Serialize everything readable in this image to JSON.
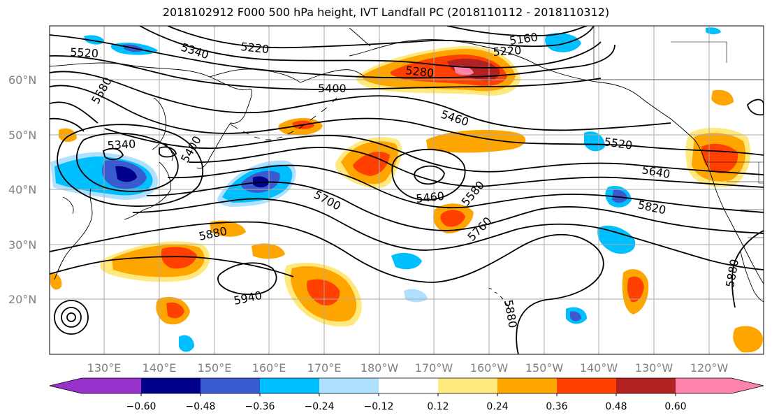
{
  "title": "2018102912 F000 500 hPa height, IVT Landfall PC (2018110112 - 2018110312)",
  "map": {
    "lon_labels": [
      "130°E",
      "140°E",
      "150°E",
      "160°E",
      "170°E",
      "180°W",
      "170°W",
      "160°W",
      "150°W",
      "140°W",
      "130°W",
      "120°W"
    ],
    "lat_labels": [
      "60°N",
      "50°N",
      "40°N",
      "30°N",
      "20°N"
    ],
    "contour_labels": [
      {
        "id": "c5520a",
        "text": "5520"
      },
      {
        "id": "c5340a",
        "text": "5340"
      },
      {
        "id": "c5220a",
        "text": "5220"
      },
      {
        "id": "c5160",
        "text": "5160"
      },
      {
        "id": "c5220b",
        "text": "5220"
      },
      {
        "id": "c5580a",
        "text": "5580"
      },
      {
        "id": "c5280",
        "text": "5280"
      },
      {
        "id": "c5400a",
        "text": "5400"
      },
      {
        "id": "c5460a",
        "text": "5460"
      },
      {
        "id": "c5340b",
        "text": "5340"
      },
      {
        "id": "c5400b",
        "text": "5400"
      },
      {
        "id": "c5520b",
        "text": "5520"
      },
      {
        "id": "c5640",
        "text": "5640"
      },
      {
        "id": "c5700",
        "text": "5700"
      },
      {
        "id": "c5460b",
        "text": "5460"
      },
      {
        "id": "c5580b",
        "text": "5580"
      },
      {
        "id": "c5820",
        "text": "5820"
      },
      {
        "id": "c5760",
        "text": "5760"
      },
      {
        "id": "c5880a",
        "text": "5880"
      },
      {
        "id": "c5940",
        "text": "5940"
      },
      {
        "id": "c5880b",
        "text": "5880"
      },
      {
        "id": "c5880c",
        "text": "5880"
      }
    ]
  },
  "colorbar": {
    "colors": [
      "#9932cc",
      "#00008b",
      "#3a5bd0",
      "#00bfff",
      "#b0e0ff",
      "#ffffff",
      "#ffe87c",
      "#ffa500",
      "#ff4000",
      "#b22222",
      "#ff82ab"
    ],
    "tick_labels": [
      "−0.60",
      "−0.48",
      "−0.36",
      "−0.24",
      "−0.12",
      "0.12",
      "0.24",
      "0.36",
      "0.48",
      "0.60"
    ]
  },
  "ivt_colors": {
    "strong_neg": "#00008b",
    "mid_neg": "#3a5bd0",
    "neg": "#00bfff",
    "weak_neg": "#b0e0ff",
    "weak_pos": "#ffe87c",
    "pos": "#ffa500",
    "mid_pos": "#ff4000",
    "strong_pos": "#b22222",
    "max_pos": "#ff82ab"
  }
}
